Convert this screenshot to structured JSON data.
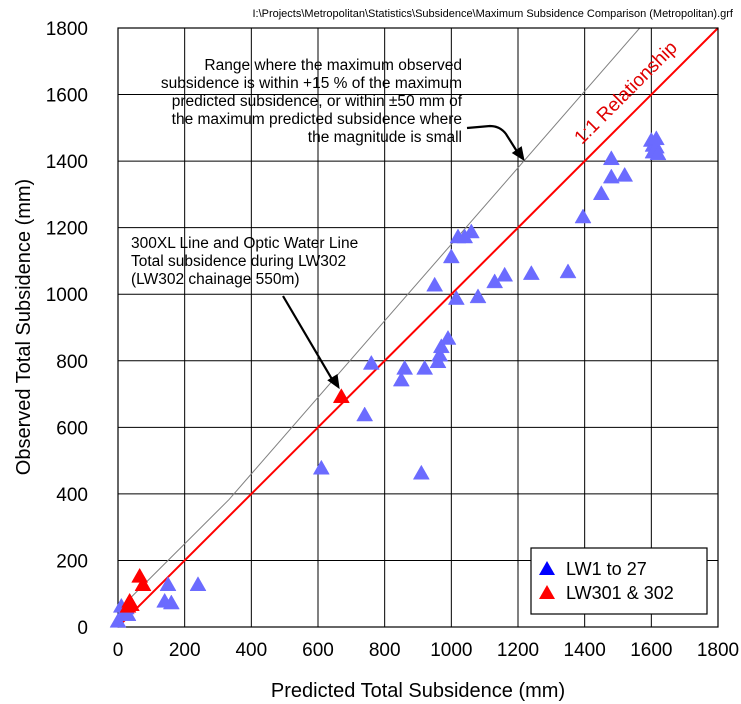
{
  "file_path": "I:\\Projects\\Metropolitan\\Statistics\\Subsidence\\Maximum Subsidence Comparison (Metropolitan).grf",
  "colors": {
    "series_lw1_27": "#6b6bff",
    "series_lw301_302": "#ff0000",
    "one_to_one_line": "#ff0000",
    "range_line": "#808080",
    "grid": "#000000",
    "legend_lw1_27_marker": "#0000ff",
    "legend_lw301_302_marker": "#ff0000"
  },
  "chart_data": {
    "type": "scatter",
    "xlabel": "Predicted Total Subsidence (mm)",
    "ylabel": "Observed Total Subsidence (mm)",
    "xlim": [
      0,
      1800
    ],
    "ylim": [
      0,
      1800
    ],
    "xticks": [
      "0",
      "200",
      "400",
      "600",
      "800",
      "1000",
      "1200",
      "1400",
      "1600",
      "1800"
    ],
    "yticks": [
      "0",
      "200",
      "400",
      "600",
      "800",
      "1000",
      "1200",
      "1400",
      "1600",
      "1800"
    ],
    "grid": true,
    "legend_position": "bottom-right",
    "reference_lines": {
      "one_to_one_label": "1:1 Relationship",
      "range_line": [
        [
          0,
          50
        ],
        [
          333,
          383
        ],
        [
          1600,
          1840
        ]
      ]
    },
    "annotations": {
      "range_text": [
        "Range where the maximum observed",
        "subsidence is within  +15 % of the maximum",
        "predicted subsidence, or within ±50 mm of",
        "the maximum predicted subsidence where",
        "the magnitude is small"
      ],
      "lw302_text": [
        "300XL Line and Optic Water Line",
        "Total subsidence during LW302",
        "(LW302 chainage 550m)"
      ],
      "range_arrow_target": [
        1220,
        1400
      ],
      "lw302_arrow_target": [
        665,
        715
      ]
    },
    "series": [
      {
        "name": "LW1 to 27",
        "points": [
          [
            0,
            20
          ],
          [
            10,
            65
          ],
          [
            25,
            60
          ],
          [
            20,
            45
          ],
          [
            30,
            40
          ],
          [
            140,
            80
          ],
          [
            150,
            130
          ],
          [
            160,
            75
          ],
          [
            240,
            130
          ],
          [
            610,
            480
          ],
          [
            740,
            640
          ],
          [
            760,
            795
          ],
          [
            850,
            745
          ],
          [
            860,
            780
          ],
          [
            920,
            780
          ],
          [
            910,
            465
          ],
          [
            950,
            1030
          ],
          [
            960,
            800
          ],
          [
            965,
            820
          ],
          [
            970,
            845
          ],
          [
            990,
            870
          ],
          [
            1000,
            1115
          ],
          [
            1015,
            990
          ],
          [
            1020,
            1175
          ],
          [
            1040,
            1175
          ],
          [
            1060,
            1190
          ],
          [
            1080,
            995
          ],
          [
            1130,
            1040
          ],
          [
            1160,
            1060
          ],
          [
            1240,
            1065
          ],
          [
            1350,
            1070
          ],
          [
            1395,
            1235
          ],
          [
            1450,
            1305
          ],
          [
            1480,
            1410
          ],
          [
            1480,
            1355
          ],
          [
            1520,
            1360
          ],
          [
            1600,
            1465
          ],
          [
            1605,
            1450
          ],
          [
            1605,
            1430
          ],
          [
            1615,
            1470
          ],
          [
            1615,
            1445
          ],
          [
            1620,
            1425
          ]
        ]
      },
      {
        "name": "LW301 & 302",
        "points": [
          [
            30,
            65
          ],
          [
            35,
            80
          ],
          [
            40,
            70
          ],
          [
            65,
            155
          ],
          [
            75,
            130
          ],
          [
            670,
            695
          ]
        ]
      }
    ]
  }
}
